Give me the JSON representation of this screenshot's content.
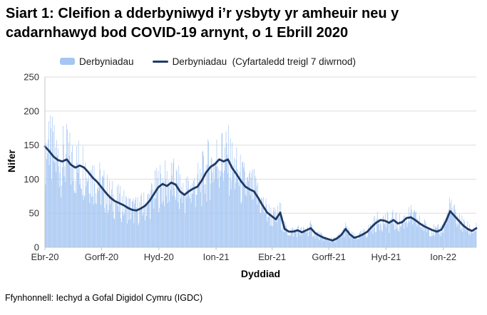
{
  "header": {
    "title_line1": "Siart 1: Cleifion a dderbyniwyd i’r ysbyty yr amheuir neu y",
    "title_line2": "cadarnhawyd bod COVID-19 arnynt, o 1 Ebrill 2020"
  },
  "legend": [
    {
      "label": "Derbyniadau",
      "type": "bar"
    },
    {
      "label": "Derbyniadau  (Cyfartaledd treigl 7 diwrnod)",
      "type": "line"
    }
  ],
  "footer": {
    "source": "Ffynhonnell: Iechyd a Gofal Digidol Cymru (IGDC)"
  },
  "colors": {
    "bar": "#A5C6F2",
    "line": "#1E3A66",
    "grid": "#DEDEDE",
    "axis": "#C4C4C4",
    "tick_text": "#333333"
  },
  "chart_data": {
    "type": "combo",
    "title": "Siart 1: Cleifion a dderbyniwyd i’r ysbyty yr amheuir neu y cadarnhawyd bod COVID-19 arnynt, o 1 Ebrill 2020",
    "xlabel": "Dyddiad",
    "ylabel": "Nifer",
    "ylim": [
      0,
      250
    ],
    "yticks": [
      0,
      50,
      100,
      150,
      200,
      250
    ],
    "xtick_labels": [
      "Ebr-20",
      "Gorff-20",
      "Hyd-20",
      "Ion-21",
      "Ebr-21",
      "Gorff-21",
      "Hyd-21",
      "Ion-22"
    ],
    "xtick_days": [
      0,
      91,
      183,
      275,
      365,
      456,
      548,
      640
    ],
    "grid": true,
    "legend_position": "top",
    "bar_jitter": 0.42,
    "series": [
      {
        "name": "Derbyniadau",
        "type": "bar",
        "color": "#A5C6F2",
        "note": "daily admissions, rendered as one thin bar per day scattered around the 7-day rolling average"
      },
      {
        "name": "Derbyniadau  (Cyfartaledd treigl 7 diwrnod)",
        "type": "line",
        "color": "#1E3A66",
        "start_date": "2020-04-01",
        "interval_days": 7,
        "values": [
          148,
          141,
          133,
          128,
          126,
          129,
          121,
          117,
          120,
          117,
          110,
          102,
          96,
          88,
          80,
          73,
          68,
          65,
          62,
          58,
          55,
          54,
          57,
          61,
          68,
          78,
          88,
          93,
          90,
          95,
          92,
          82,
          77,
          82,
          86,
          89,
          98,
          110,
          118,
          122,
          129,
          126,
          129,
          116,
          107,
          97,
          89,
          85,
          82,
          72,
          61,
          51,
          46,
          41,
          51,
          27,
          23,
          23,
          25,
          22,
          25,
          28,
          21,
          17,
          14,
          12,
          10,
          13,
          18,
          27,
          19,
          14,
          16,
          19,
          23,
          30,
          36,
          40,
          39,
          36,
          40,
          35,
          37,
          43,
          44,
          40,
          35,
          31,
          28,
          25,
          23,
          26,
          38,
          53,
          46,
          39,
          32,
          27,
          24,
          28
        ]
      }
    ],
    "notable_daily_bars": [
      {
        "day": 0,
        "value": 205
      },
      {
        "day": 6,
        "value": 185
      },
      {
        "day": 285,
        "value": 168
      },
      {
        "day": 650,
        "value": 73
      }
    ]
  }
}
